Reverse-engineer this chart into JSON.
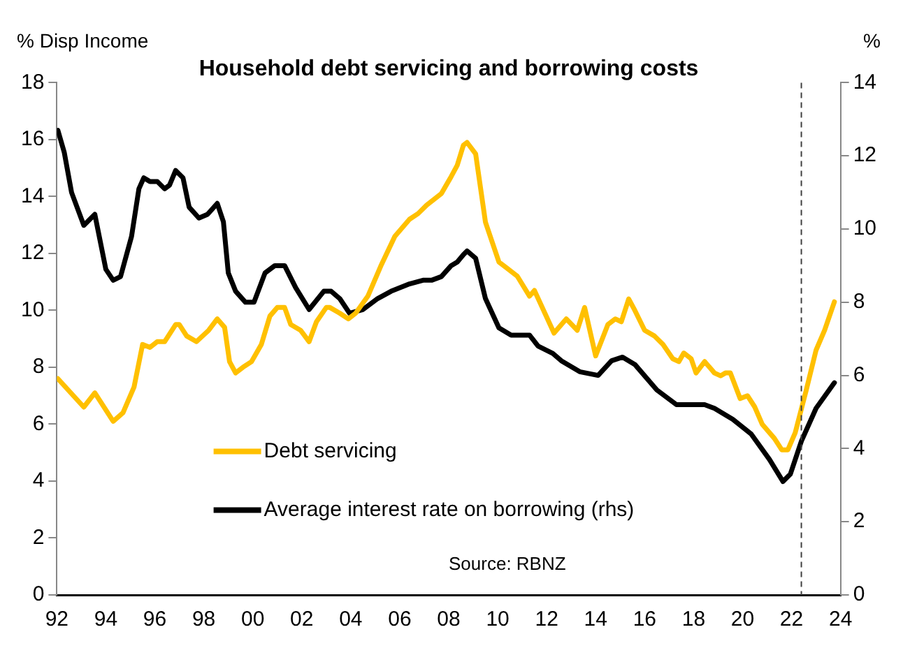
{
  "chart_data": {
    "type": "line",
    "title": "Household debt servicing and borrowing costs",
    "ylabel": "% Disp Income",
    "y2label": "%",
    "xlim": [
      1992,
      2024
    ],
    "xticks": [
      {
        "value": 1992,
        "label": "92"
      },
      {
        "value": 1994,
        "label": "94"
      },
      {
        "value": 1996,
        "label": "96"
      },
      {
        "value": 1998,
        "label": "98"
      },
      {
        "value": 2000,
        "label": "00"
      },
      {
        "value": 2002,
        "label": "02"
      },
      {
        "value": 2004,
        "label": "04"
      },
      {
        "value": 2006,
        "label": "06"
      },
      {
        "value": 2008,
        "label": "08"
      },
      {
        "value": 2010,
        "label": "10"
      },
      {
        "value": 2012,
        "label": "12"
      },
      {
        "value": 2014,
        "label": "14"
      },
      {
        "value": 2016,
        "label": "16"
      },
      {
        "value": 2018,
        "label": "18"
      },
      {
        "value": 2020,
        "label": "20"
      },
      {
        "value": 2022,
        "label": "22"
      },
      {
        "value": 2024,
        "label": "24"
      }
    ],
    "ylim": [
      0,
      18
    ],
    "yticks": [
      0,
      2,
      4,
      6,
      8,
      10,
      12,
      14,
      16,
      18
    ],
    "y2lim": [
      0,
      14
    ],
    "y2ticks": [
      0,
      2,
      4,
      6,
      8,
      10,
      12,
      14
    ],
    "grid": false,
    "legend": "bottom left",
    "marker": "none",
    "line_style": "solid",
    "series": [
      {
        "name": "Debt servicing",
        "color": "#ffc000",
        "x": [
          1992.04,
          1993.1,
          1993.55,
          1994.3,
          1994.7,
          1995.15,
          1995.5,
          1995.8,
          1996.1,
          1996.4,
          1996.85,
          1997.0,
          1997.3,
          1997.7,
          1998.2,
          1998.55,
          1998.85,
          1999.05,
          1999.3,
          1999.6,
          1999.95,
          2000.35,
          2000.7,
          2001.0,
          2001.3,
          2001.55,
          2001.95,
          2002.3,
          2002.6,
          2003.0,
          2003.15,
          2003.55,
          2003.9,
          2004.2,
          2004.7,
          2005.25,
          2005.8,
          2006.4,
          2006.75,
          2007.1,
          2007.7,
          2008.1,
          2008.35,
          2008.6,
          2008.75,
          2009.1,
          2009.5,
          2010.05,
          2010.35,
          2010.8,
          2011.3,
          2011.5,
          2012.3,
          2012.8,
          2013.25,
          2013.55,
          2014.0,
          2014.5,
          2014.8,
          2015.05,
          2015.35,
          2015.6,
          2016.0,
          2016.4,
          2016.75,
          2017.15,
          2017.4,
          2017.6,
          2017.9,
          2018.1,
          2018.45,
          2018.85,
          2019.1,
          2019.3,
          2019.5,
          2019.9,
          2020.2,
          2020.5,
          2020.8,
          2021.3,
          2021.6,
          2021.85,
          2022.15,
          2022.6,
          2023.0,
          2023.35,
          2023.75
        ],
        "values": [
          7.6,
          6.6,
          7.1,
          6.1,
          6.4,
          7.3,
          8.8,
          8.7,
          8.9,
          8.9,
          9.5,
          9.5,
          9.1,
          8.9,
          9.3,
          9.7,
          9.4,
          8.2,
          7.8,
          8.0,
          8.2,
          8.8,
          9.8,
          10.1,
          10.1,
          9.5,
          9.3,
          8.9,
          9.6,
          10.1,
          10.1,
          9.9,
          9.7,
          9.9,
          10.5,
          11.6,
          12.6,
          13.2,
          13.4,
          13.7,
          14.1,
          14.7,
          15.1,
          15.8,
          15.9,
          15.5,
          13.1,
          11.7,
          11.5,
          11.2,
          10.5,
          10.7,
          9.2,
          9.7,
          9.3,
          10.1,
          8.4,
          9.5,
          9.7,
          9.6,
          10.4,
          10.0,
          9.3,
          9.1,
          8.8,
          8.3,
          8.2,
          8.5,
          8.3,
          7.8,
          8.2,
          7.8,
          7.7,
          7.8,
          7.8,
          6.9,
          7.0,
          6.6,
          6.0,
          5.5,
          5.1,
          5.1,
          5.7,
          7.2,
          8.6,
          9.3,
          10.3
        ]
      },
      {
        "name": "Average interest rate on borrowing (rhs)",
        "color": "#000000",
        "axis": "y2",
        "x": [
          1992.04,
          1992.3,
          1992.6,
          1993.1,
          1993.55,
          1994.0,
          1994.3,
          1994.6,
          1995.05,
          1995.35,
          1995.55,
          1995.8,
          1996.1,
          1996.4,
          1996.6,
          1996.85,
          1997.15,
          1997.4,
          1997.8,
          1998.15,
          1998.55,
          1998.8,
          1999.0,
          1999.3,
          1999.7,
          2000.05,
          2000.5,
          2000.9,
          2001.3,
          2001.75,
          2002.3,
          2002.9,
          2003.2,
          2003.55,
          2003.95,
          2004.5,
          2005.1,
          2005.65,
          2006.4,
          2006.95,
          2007.3,
          2007.7,
          2008.1,
          2008.35,
          2008.6,
          2008.75,
          2009.1,
          2009.5,
          2010.05,
          2010.55,
          2011.3,
          2011.65,
          2012.25,
          2012.6,
          2013.35,
          2014.1,
          2014.65,
          2015.1,
          2015.6,
          2016.5,
          2017.3,
          2018.45,
          2018.85,
          2019.6,
          2020.35,
          2021.1,
          2021.65,
          2021.95,
          2022.4,
          2023.0,
          2023.75
        ],
        "values": [
          12.7,
          12.1,
          11.0,
          10.1,
          10.4,
          8.9,
          8.6,
          8.7,
          9.8,
          11.1,
          11.4,
          11.3,
          11.3,
          11.1,
          11.2,
          11.6,
          11.4,
          10.6,
          10.3,
          10.4,
          10.7,
          10.2,
          8.8,
          8.3,
          8.0,
          8.0,
          8.8,
          9.0,
          9.0,
          8.4,
          7.8,
          8.3,
          8.3,
          8.1,
          7.7,
          7.8,
          8.1,
          8.3,
          8.5,
          8.6,
          8.6,
          8.7,
          9.0,
          9.1,
          9.3,
          9.4,
          9.2,
          8.1,
          7.3,
          7.1,
          7.1,
          6.8,
          6.6,
          6.4,
          6.1,
          6.0,
          6.4,
          6.5,
          6.3,
          5.6,
          5.2,
          5.2,
          5.1,
          4.8,
          4.4,
          3.7,
          3.1,
          3.3,
          4.2,
          5.1,
          5.8
        ]
      }
    ],
    "ref_lines": [
      {
        "axis": "x",
        "value": 2022.4,
        "color": "#404040",
        "line_style": "dashed"
      }
    ],
    "annotations": [
      "Source: RBNZ"
    ]
  }
}
